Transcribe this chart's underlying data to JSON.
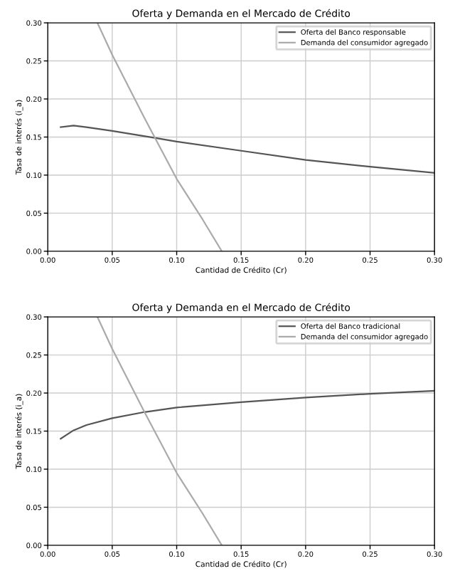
{
  "chart_data": [
    {
      "type": "line",
      "title": "Oferta y Demanda en el Mercado de Crédito",
      "xlabel": "Cantidad de Crédito (Cr)",
      "ylabel": "Tasa de interés (i_a)",
      "xlim": [
        0,
        0.3
      ],
      "ylim": [
        0,
        0.3
      ],
      "xticks": [
        {
          "value": 0,
          "label": "0.00"
        },
        0.05,
        {
          "value": 0.1,
          "label": "0.10"
        },
        0.15,
        {
          "value": 0.2,
          "label": "0.20"
        },
        0.25,
        {
          "value": 0.3,
          "label": "0.30"
        }
      ],
      "yticks": [
        {
          "value": 0,
          "label": "0.00"
        },
        0.05,
        {
          "value": 0.1,
          "label": "0.10"
        },
        0.15,
        {
          "value": 0.2,
          "label": "0.20"
        },
        0.25,
        {
          "value": 0.3,
          "label": "0.30"
        }
      ],
      "grid": true,
      "legend": "top right",
      "series": [
        {
          "name": "Oferta del Banco responsable",
          "color": "#555555",
          "x": [
            0.01,
            0.02,
            0.03,
            0.05,
            0.083,
            0.1,
            0.15,
            0.2,
            0.25,
            0.3
          ],
          "values": [
            0.163,
            0.165,
            0.163,
            0.158,
            0.149,
            0.144,
            0.132,
            0.12,
            0.111,
            0.103
          ]
        },
        {
          "name": "Demanda del consumidor agregado",
          "color": "#aaaaaa",
          "x": [
            0.0385,
            0.05,
            0.075,
            0.1,
            0.12,
            0.135
          ],
          "values": [
            0.3,
            0.258,
            0.175,
            0.095,
            0.042,
            0.0
          ]
        }
      ]
    },
    {
      "type": "line",
      "title": "Oferta y Demanda en el Mercado de Crédito",
      "xlabel": "Cantidad de Crédito (Cr)",
      "ylabel": "Tasa de interés (i_a)",
      "xlim": [
        0,
        0.3
      ],
      "ylim": [
        0,
        0.3
      ],
      "xticks": [
        {
          "value": 0,
          "label": "0.00"
        },
        0.05,
        {
          "value": 0.1,
          "label": "0.10"
        },
        0.15,
        {
          "value": 0.2,
          "label": "0.20"
        },
        0.25,
        {
          "value": 0.3,
          "label": "0.30"
        }
      ],
      "yticks": [
        {
          "value": 0,
          "label": "0.00"
        },
        0.05,
        {
          "value": 0.1,
          "label": "0.10"
        },
        0.15,
        {
          "value": 0.2,
          "label": "0.20"
        },
        0.25,
        {
          "value": 0.3,
          "label": "0.30"
        }
      ],
      "grid": true,
      "legend": "top right",
      "series": [
        {
          "name": "Oferta del Banco tradicional",
          "color": "#555555",
          "x": [
            0.01,
            0.02,
            0.03,
            0.05,
            0.075,
            0.1,
            0.15,
            0.2,
            0.25,
            0.3
          ],
          "values": [
            0.14,
            0.151,
            0.158,
            0.167,
            0.175,
            0.181,
            0.188,
            0.194,
            0.199,
            0.203
          ]
        },
        {
          "name": "Demanda del consumidor agregado",
          "color": "#aaaaaa",
          "x": [
            0.0385,
            0.05,
            0.075,
            0.1,
            0.12,
            0.135
          ],
          "values": [
            0.3,
            0.258,
            0.175,
            0.095,
            0.042,
            0.0
          ]
        }
      ]
    }
  ]
}
